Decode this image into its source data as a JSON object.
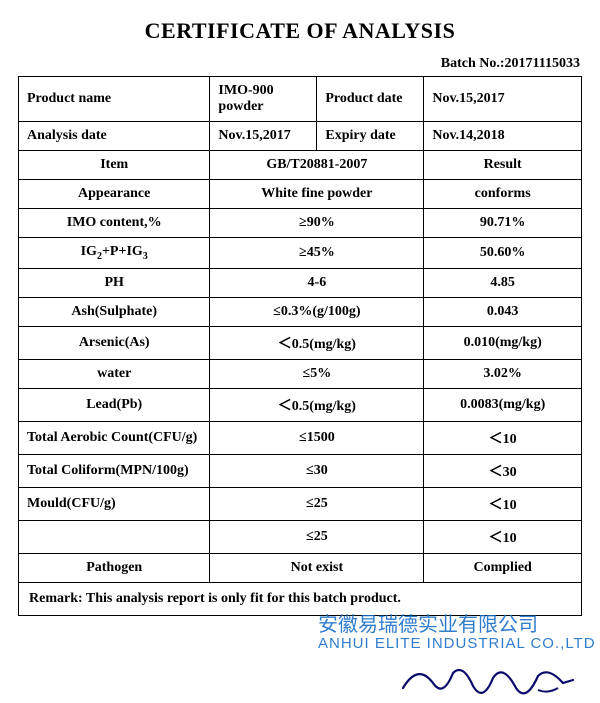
{
  "title": "CERTIFICATE OF ANALYSIS",
  "batch_label": "Batch No.:",
  "batch_no": "20171115033",
  "header": {
    "product_name_label": "Product name",
    "product_name": "IMO-900 powder",
    "product_date_label": "Product date",
    "product_date": "Nov.15,2017",
    "analysis_date_label": "Analysis date",
    "analysis_date": "Nov.15,2017",
    "expiry_date_label": "Expiry date",
    "expiry_date": "Nov.14,2018"
  },
  "col_labels": {
    "item": "Item",
    "spec": "GB/T20881-2007",
    "result": "Result"
  },
  "rows": [
    {
      "item": "Appearance",
      "spec": "White fine powder",
      "result": "conforms"
    },
    {
      "item": "IMO content,%",
      "spec": "≥90%",
      "result": "90.71%"
    },
    {
      "item": "IG₂+P+IG₃",
      "spec": "≥45%",
      "result": "50.60%"
    },
    {
      "item": "PH",
      "spec": "4-6",
      "result": "4.85"
    },
    {
      "item": "Ash(Sulphate)",
      "spec": "≤0.3%(g/100g)",
      "result": "0.043"
    },
    {
      "item": "Arsenic(As)",
      "spec": "＜0.5(mg/kg)",
      "result": "0.010(mg/kg)"
    },
    {
      "item": "water",
      "spec": "≤5%",
      "result": "3.02%"
    },
    {
      "item": "Lead(Pb)",
      "spec": "＜0.5(mg/kg)",
      "result": "0.0083(mg/kg)"
    },
    {
      "item": "Total Aerobic Count(CFU/g)",
      "spec": "≤1500",
      "result": "＜10"
    },
    {
      "item": "Total Coliform(MPN/100g)",
      "spec": "≤30",
      "result": "＜30"
    },
    {
      "item": "Mould(CFU/g)",
      "spec": "≤25",
      "result": "＜10"
    },
    {
      "item": "",
      "spec": "≤25",
      "result": "＜10"
    },
    {
      "item": "Pathogen",
      "spec": "Not exist",
      "result": "Complied"
    }
  ],
  "remark": "Remark: This analysis report is only fit for this batch product.",
  "watermark_cn": "安徽易瑞德实业有限公司",
  "watermark_en": "ANHUI ELITE INDUSTRIAL CO.,LTD",
  "colors": {
    "text": "#000000",
    "border": "#000000",
    "watermark": "#1a6fc9",
    "signature": "#0a0a6b",
    "background": "#ffffff"
  },
  "col_widths_pct": [
    34,
    38,
    28
  ],
  "font_family": "Times New Roman",
  "base_fontsize_pt": 14
}
